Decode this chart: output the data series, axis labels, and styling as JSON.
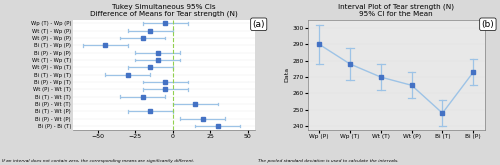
{
  "title_a": "Tukey Simultaneous 95% CIs",
  "subtitle_a": "Difference of Means for Tear strength (N)",
  "title_b": "Interval Plot of Tear strength (N)",
  "subtitle_b": "95% CI for the Mean",
  "footnote_a": "If an interval does not contain zero, the corresponding means are significantly different.",
  "footnote_b": "The pooled standard deviation is used to calculate the intervals.",
  "label_a": "(a)",
  "label_b": "(b)",
  "tukey_labels": [
    "Wp (T) - Wp (P)",
    "Wt (T) - Wp (P)",
    "Wt (P) - Wp (P)",
    "Bi (T) - Wp (P)",
    "Bi (P) - Wp (P)",
    "Wt (T) - Wp (T)",
    "Wt (P) - Wp (T)",
    "Bi (T) - Wp (T)",
    "Bi (P) - Wp (T)",
    "Wt (P) - Wt (T)",
    "Bi (T) - Wt (T)",
    "Bi (P) - Wt (T)",
    "Bi (T) - Wt (P)",
    "Bi (P) - Wt (P)",
    "Bi (P) - Bi (T)"
  ],
  "tukey_centers": [
    -5,
    -15,
    -20,
    -45,
    -10,
    -10,
    -15,
    -30,
    -5,
    -5,
    -20,
    15,
    -15,
    20,
    30
  ],
  "tukey_lows": [
    -20,
    -30,
    -35,
    -60,
    -25,
    -25,
    -30,
    -45,
    -20,
    -20,
    -35,
    0,
    -30,
    5,
    15
  ],
  "tukey_highs": [
    10,
    0,
    -5,
    -30,
    5,
    5,
    0,
    -15,
    10,
    10,
    -5,
    30,
    0,
    35,
    45
  ],
  "interval_categories": [
    "Wp (P)",
    "Wp (T)",
    "Wt (T)",
    "Wt (P)",
    "Bi (T)",
    "Bi (P)"
  ],
  "interval_means": [
    290,
    278,
    270,
    265,
    248,
    273
  ],
  "interval_lows": [
    278,
    268,
    262,
    257,
    240,
    265
  ],
  "interval_highs": [
    302,
    288,
    278,
    273,
    256,
    281
  ],
  "interval_ylim": [
    238,
    305
  ],
  "interval_yticks": [
    240,
    250,
    260,
    270,
    280,
    290,
    300
  ],
  "tukey_xlim": [
    -67,
    55
  ],
  "tukey_xticks": [
    -50,
    -25,
    0,
    25,
    50
  ],
  "line_color": "#4472C4",
  "line_color_light": "#9DC3E6",
  "bg_color": "#D9D9D9",
  "plot_bg_white": "#FFFFFF",
  "plot_bg_gray": "#E8E8E8",
  "vline_color": "#92D050"
}
